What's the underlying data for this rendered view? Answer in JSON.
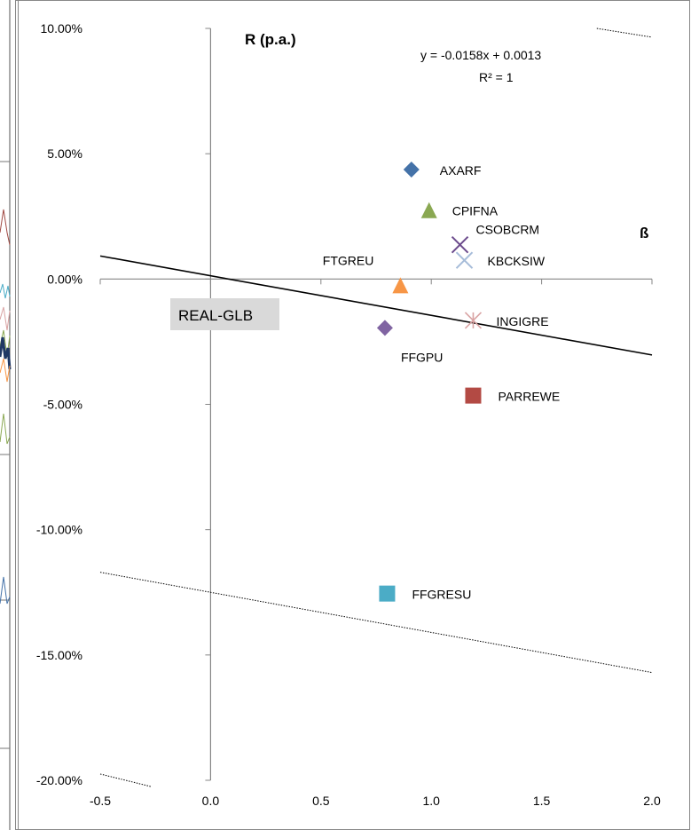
{
  "chart_data": {
    "type": "scatter",
    "title": "",
    "xlabel": "ß",
    "ylabel": "R (p.a.)",
    "xlim": [
      -0.5,
      2.0
    ],
    "ylim": [
      -0.2,
      0.1
    ],
    "x_ticks": [
      "-0.5",
      "0.0",
      "0.5",
      "1.0",
      "1.5",
      "2.0"
    ],
    "y_ticks": [
      "10.00%",
      "5.00%",
      "0.00%",
      "-5.00%",
      "-10.00%",
      "-15.00%",
      "-20.00%"
    ],
    "grid": false,
    "legend": "none",
    "trendline": {
      "equation": "y = -0.0158x + 0.0013",
      "r_squared": "R² = 1",
      "slope": -0.0158,
      "intercept": 0.0013
    },
    "bounds_upper": [
      [
        1.75,
        0.1
      ],
      [
        2.0,
        0.0965
      ]
    ],
    "bounds_lower": [
      [
        -0.5,
        -0.117
      ],
      [
        2.0,
        -0.157
      ]
    ],
    "bounds_lower2": [
      [
        -0.5,
        -0.1975
      ],
      [
        -0.27,
        -0.2025
      ]
    ],
    "points": [
      {
        "name": "AXARF",
        "x": 0.91,
        "y": 0.0437,
        "marker": "diamond",
        "color": "#4472a8"
      },
      {
        "name": "CPIFNA",
        "x": 0.99,
        "y": 0.0275,
        "marker": "triangle",
        "color": "#8aa852"
      },
      {
        "name": "CSOBCRM",
        "x": 1.13,
        "y": 0.0137,
        "marker": "x",
        "color": "#6b4a8c"
      },
      {
        "name": "KBCKSIW",
        "x": 1.15,
        "y": 0.0075,
        "marker": "x",
        "color": "#a6bcd9"
      },
      {
        "name": "FTGREU",
        "x": 0.86,
        "y": -0.0025,
        "marker": "triangle",
        "color": "#f79646"
      },
      {
        "name": "INGIGRE",
        "x": 1.19,
        "y": -0.0165,
        "marker": "star",
        "color": "#d9a3a3"
      },
      {
        "name": "FFGPU",
        "x": 0.79,
        "y": -0.0195,
        "marker": "diamond",
        "color": "#8064a2"
      },
      {
        "name": "PARREWE",
        "x": 1.19,
        "y": -0.0465,
        "marker": "square",
        "color": "#b34a44"
      },
      {
        "name": "FFGRESU",
        "x": 0.8,
        "y": -0.1255,
        "marker": "square",
        "color": "#4bacc6"
      }
    ],
    "callout": "REAL-GLB"
  }
}
